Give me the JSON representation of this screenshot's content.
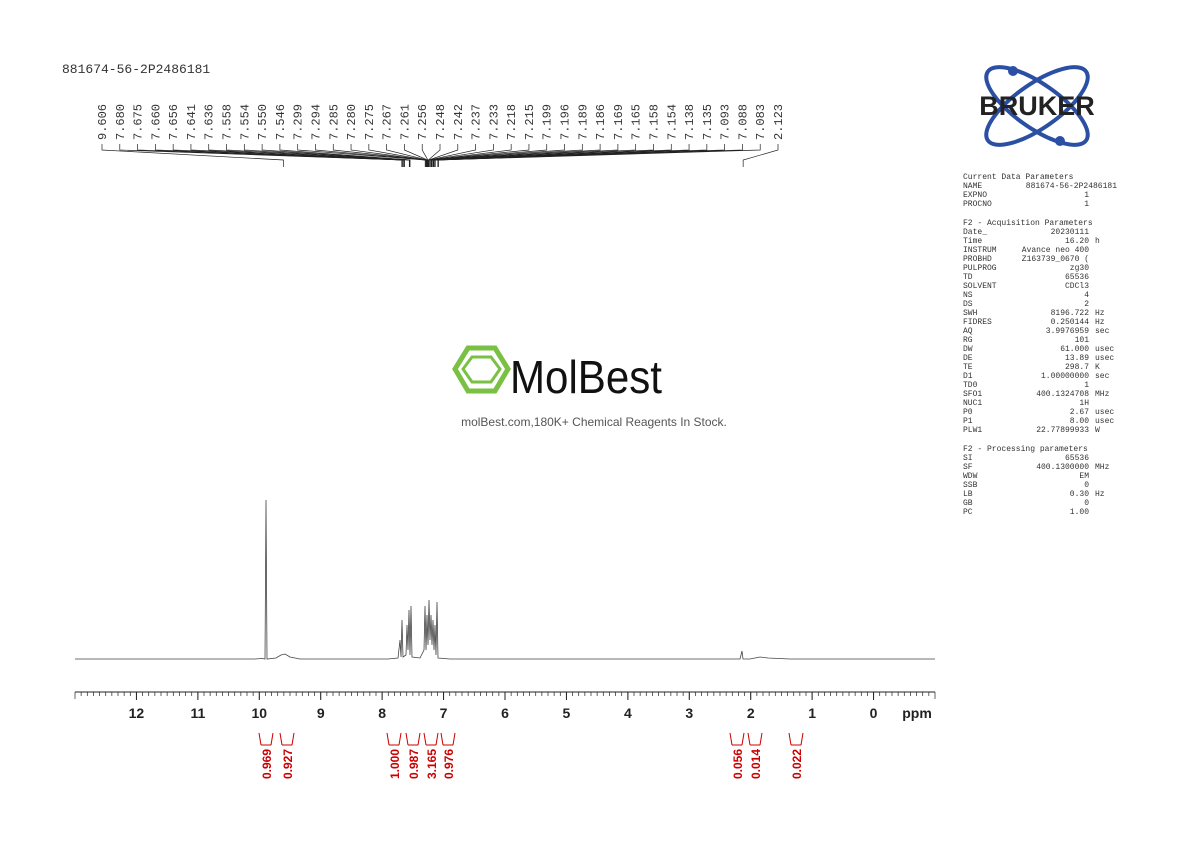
{
  "header": {
    "title": "881674-56-2P2486181"
  },
  "peaks": [
    "9.606",
    "7.680",
    "7.675",
    "7.660",
    "7.656",
    "7.641",
    "7.636",
    "7.558",
    "7.554",
    "7.550",
    "7.546",
    "7.299",
    "7.294",
    "7.285",
    "7.280",
    "7.275",
    "7.267",
    "7.261",
    "7.256",
    "7.248",
    "7.242",
    "7.237",
    "7.233",
    "7.218",
    "7.215",
    "7.199",
    "7.196",
    "7.189",
    "7.186",
    "7.169",
    "7.165",
    "7.158",
    "7.154",
    "7.138",
    "7.135",
    "7.093",
    "7.088",
    "7.083",
    "2.123"
  ],
  "axis": {
    "xlim": [
      13,
      -1
    ],
    "xticks": [
      12,
      11,
      10,
      9,
      8,
      7,
      6,
      5,
      4,
      3,
      2,
      1,
      0
    ],
    "label": "ppm"
  },
  "integrals": [
    "0.969",
    "0.927",
    "1.000",
    "0.987",
    "3.165",
    "0.976",
    "0.056",
    "0.014",
    "0.022"
  ],
  "watermark": {
    "brand": "MolBest",
    "tagline": "molBest.com,180K+ Chemical Reagents In Stock."
  },
  "logo": {
    "text": "BRUKER"
  },
  "parameters": [
    {
      "title": "Current Data Parameters",
      "rows": [
        {
          "name": "NAME",
          "value": "881674-56-2P2486181"
        },
        {
          "name": "EXPNO",
          "value": "1"
        },
        {
          "name": "PROCNO",
          "value": "1"
        }
      ]
    },
    {
      "title": "F2 - Acquisition Parameters",
      "rows": [
        {
          "name": "Date_",
          "value": "20230111"
        },
        {
          "name": "Time",
          "value": "16.20",
          "unit": "h"
        },
        {
          "name": "INSTRUM",
          "value": "Avance neo 400"
        },
        {
          "name": "PROBHD",
          "value": "Z163739_0670 ("
        },
        {
          "name": "PULPROG",
          "value": "zg30"
        },
        {
          "name": "TD",
          "value": "65536"
        },
        {
          "name": "SOLVENT",
          "value": "CDCl3"
        },
        {
          "name": "NS",
          "value": "4"
        },
        {
          "name": "DS",
          "value": "2"
        },
        {
          "name": "SWH",
          "value": "8196.722",
          "unit": "Hz"
        },
        {
          "name": "FIDRES",
          "value": "0.250144",
          "unit": "Hz"
        },
        {
          "name": "AQ",
          "value": "3.9976959",
          "unit": "sec"
        },
        {
          "name": "RG",
          "value": "101"
        },
        {
          "name": "DW",
          "value": "61.000",
          "unit": "usec"
        },
        {
          "name": "DE",
          "value": "13.89",
          "unit": "usec"
        },
        {
          "name": "TE",
          "value": "298.7",
          "unit": "K"
        },
        {
          "name": "D1",
          "value": "1.00000000",
          "unit": "sec"
        },
        {
          "name": "TD0",
          "value": "1"
        },
        {
          "name": "SFO1",
          "value": "400.1324708",
          "unit": "MHz"
        },
        {
          "name": "NUC1",
          "value": "1H"
        },
        {
          "name": "P0",
          "value": "2.67",
          "unit": "usec"
        },
        {
          "name": "P1",
          "value": "8.00",
          "unit": "usec"
        },
        {
          "name": "PLW1",
          "value": "22.77899933",
          "unit": "W"
        }
      ]
    },
    {
      "title": "F2 - Processing parameters",
      "rows": [
        {
          "name": "SI",
          "value": "65536"
        },
        {
          "name": "SF",
          "value": "400.1300000",
          "unit": "MHz"
        },
        {
          "name": "WDW",
          "value": "EM"
        },
        {
          "name": "SSB",
          "value": "0"
        },
        {
          "name": "LB",
          "value": "0.30",
          "unit": "Hz"
        },
        {
          "name": "GB",
          "value": "0"
        },
        {
          "name": "PC",
          "value": "1.00"
        }
      ]
    }
  ]
}
